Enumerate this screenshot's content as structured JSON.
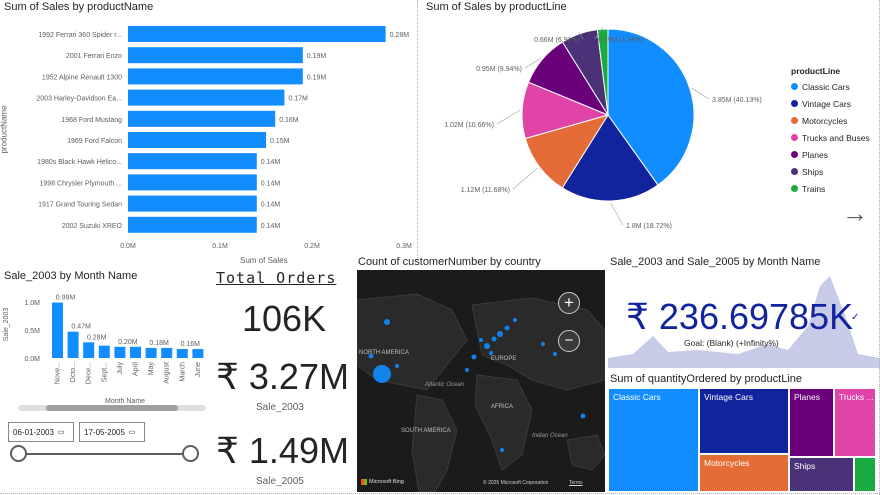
{
  "top_bar": {
    "chart_title": "Sum of Sales by productName",
    "y_axis_label": "productName",
    "x_axis_label": "Sum of Sales"
  },
  "pie": {
    "chart_title": "Sum of Sales by productLine",
    "legend_title": "productLine"
  },
  "month_bar": {
    "chart_title": "Sale_2003 by Month Name",
    "y_axis_label": "Sale_2003",
    "x_axis_label": "Month Name"
  },
  "orders": {
    "title": "Total Orders",
    "total_value": "106K",
    "sale2003_value": "₹ 3.27M",
    "sale2003_label": "Sale_2003",
    "sale2005_value": "₹ 1.49M",
    "sale2005_label": "Sale_2005"
  },
  "map": {
    "chart_title": "Count of customerNumber by country",
    "labels": {
      "north_america": "NORTH AMERICA",
      "europe": "EUROPE",
      "africa": "AFRICA",
      "south_america": "SOUTH AMERICA",
      "atlantic": "Atlantic Ocean",
      "indian": "Indian Ocean"
    },
    "zoom_in": "+",
    "zoom_out": "−",
    "bing_label": "Microsoft Bing",
    "copyright": "© 2025 Microsoft Corporation",
    "terms": "Terms"
  },
  "kpi": {
    "chart_title": "Sale_2003 and Sale_2005 by Month Name",
    "value": "₹ 236.69785K",
    "goal": "Goal: (Blank) (+Infinity%)"
  },
  "treemap": {
    "chart_title": "Sum of quantityOrdered by productLine",
    "cells": [
      "Classic Cars",
      "Vintage Cars",
      "Planes",
      "Trucks ...",
      "Motorcycles",
      "Ships"
    ]
  },
  "slicer": {
    "start_date": "06-01-2003",
    "end_date": "17-05-2005"
  },
  "nav": {
    "arrow": "→"
  },
  "colors": {
    "accent": "#118dff",
    "navy": "#12239e",
    "orange": "#e66c37",
    "pink": "#e044a7",
    "purple": "#6b007b",
    "darkpurple": "#4a3178",
    "green": "#1aab40"
  },
  "chart_data": [
    {
      "type": "bar",
      "orientation": "horizontal",
      "title": "Sum of Sales by productName",
      "xlabel": "Sum of Sales",
      "ylabel": "productName",
      "categories": [
        "1992 Ferrari 360 Spider r...",
        "2001 Ferrari Enzo",
        "1952 Alpine Renault 1300",
        "2003 Harley-Davidson Ea...",
        "1968 Ford Mustang",
        "1969 Ford Falcon",
        "1980s Black Hawk Helico...",
        "1998 Chrysler Plymouth ...",
        "1917 Grand Touring Sedan",
        "2002 Suzuki XREO"
      ],
      "values": [
        0.28,
        0.19,
        0.19,
        0.17,
        0.16,
        0.15,
        0.14,
        0.14,
        0.14,
        0.14
      ],
      "data_labels": [
        "0.28M",
        "0.19M",
        "0.19M",
        "0.17M",
        "0.16M",
        "0.15M",
        "0.14M",
        "0.14M",
        "0.14M",
        "0.14M"
      ],
      "xlim": [
        0,
        0.3
      ],
      "xticks": [
        "0.0M",
        "0.1M",
        "0.2M",
        "0.3M"
      ]
    },
    {
      "type": "pie",
      "title": "Sum of Sales by productLine",
      "legend_title": "productLine",
      "categories": [
        "Classic Cars",
        "Vintage Cars",
        "Motorcycles",
        "Trucks and Buses",
        "Planes",
        "Ships",
        "Trains"
      ],
      "values": [
        3.85,
        1.8,
        1.12,
        1.02,
        0.95,
        0.66,
        0.19
      ],
      "percent": [
        40.13,
        18.72,
        11.68,
        10.66,
        9.94,
        6.91,
        1.96
      ],
      "data_labels": [
        "3.85M (40.13%)",
        "1.8M (18.72%)",
        "1.12M (11.68%)",
        "1.02M (10.66%)",
        "0.95M (9.94%)",
        "0.66M (6.91%)",
        "0.19M (1.96%)"
      ],
      "colors": [
        "#118dff",
        "#12239e",
        "#e66c37",
        "#e044a7",
        "#6b007b",
        "#4a3178",
        "#1aab40"
      ],
      "legend": "right"
    },
    {
      "type": "bar",
      "title": "Sale_2003 by Month Name",
      "xlabel": "Month Name",
      "ylabel": "Sale_2003",
      "categories": [
        "Nove...",
        "Octo...",
        "Dece...",
        "Sept...",
        "July",
        "April",
        "May",
        "August",
        "March",
        "June"
      ],
      "values": [
        0.99,
        0.47,
        0.28,
        0.22,
        0.2,
        0.2,
        0.18,
        0.18,
        0.16,
        0.16
      ],
      "data_labels": [
        "0.99M",
        "0.47M",
        "0.28M",
        "",
        "0.20M",
        "",
        "0.18M",
        "",
        "0.16M",
        ""
      ],
      "ylim": [
        0,
        1.0
      ],
      "yticks": [
        "0.0M",
        "0.5M",
        "1.0M"
      ]
    }
  ]
}
